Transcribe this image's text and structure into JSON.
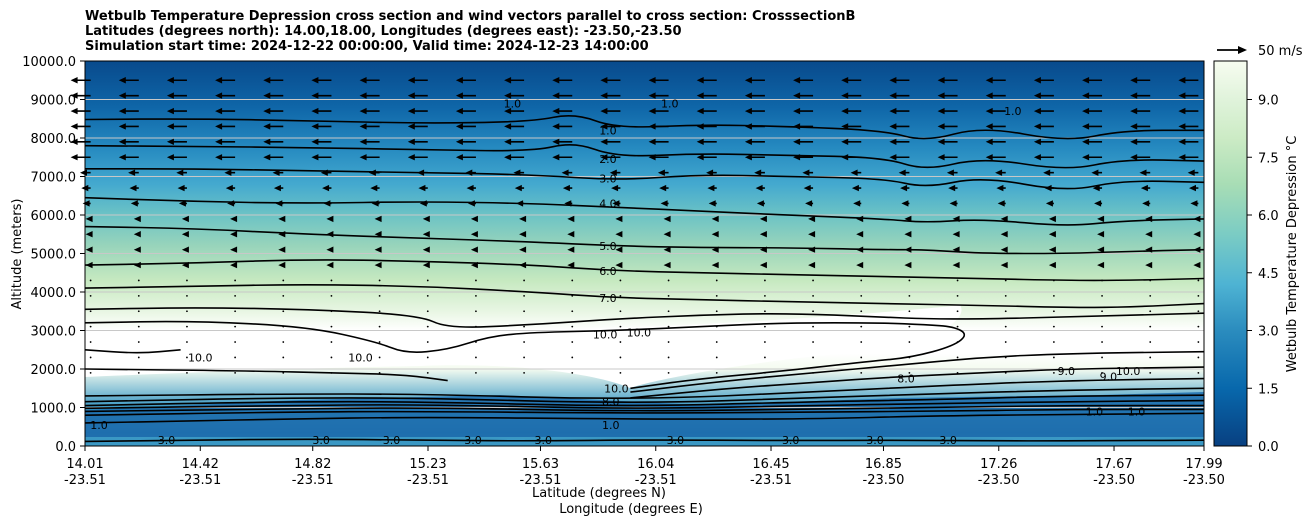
{
  "chart_data": {
    "type": "filled-contour cross section with line contours and wind vectors",
    "title_lines": [
      "Wetbulb Temperature Depression cross section and wind vectors parallel to cross section: CrosssectionB",
      "Latitudes (degrees north): 14.00,18.00, Longitudes (degrees east): -23.50,-23.50",
      "Simulation start time: 2024-12-22 00:00:00, Valid time: 2024-12-23 14:00:00"
    ],
    "ylabel": "Altitude (meters)",
    "xlabel_lat": "Latitude (degrees N)",
    "xlabel_lon": "Longitude (degrees E)",
    "ylim": [
      0,
      10000
    ],
    "yticks": [
      "0.0",
      "1000.0",
      "2000.0",
      "3000.0",
      "4000.0",
      "5000.0",
      "6000.0",
      "7000.0",
      "8000.0",
      "9000.0",
      "10000.0"
    ],
    "xticks_lat": [
      "14.01",
      "14.42",
      "14.82",
      "15.23",
      "15.63",
      "16.04",
      "16.45",
      "16.85",
      "17.26",
      "17.67",
      "17.99"
    ],
    "xticks_lon": [
      "-23.51",
      "-23.51",
      "-23.51",
      "-23.51",
      "-23.51",
      "-23.51",
      "-23.51",
      "-23.50",
      "-23.50",
      "-23.50",
      "-23.50"
    ],
    "xlim_lat": [
      14.01,
      17.99
    ],
    "horizontal_grid": true,
    "colorbar": {
      "label": "Wetbulb Temperature Depression °C",
      "range": [
        0,
        10
      ],
      "ticks": [
        "0.0",
        "1.5",
        "3.0",
        "4.5",
        "6.0",
        "7.5",
        "9.0"
      ],
      "colormap": "GnBu_r"
    },
    "wind_key_label": "50 m/s",
    "contour_labels": [
      {
        "text": "1.0",
        "lat": 15.87,
        "alt": 8200
      },
      {
        "text": "2.0",
        "lat": 15.87,
        "alt": 7450
      },
      {
        "text": "3.0",
        "lat": 15.87,
        "alt": 6950
      },
      {
        "text": "4.0",
        "lat": 15.87,
        "alt": 6300
      },
      {
        "text": "5.0",
        "lat": 15.87,
        "alt": 5200
      },
      {
        "text": "6.0",
        "lat": 15.87,
        "alt": 4550
      },
      {
        "text": "7.0",
        "lat": 15.87,
        "alt": 3850
      },
      {
        "text": "10.0",
        "lat": 15.86,
        "alt": 2900
      },
      {
        "text": "10.0",
        "lat": 15.98,
        "alt": 2950
      },
      {
        "text": "10.0",
        "lat": 15.9,
        "alt": 1500
      },
      {
        "text": "8.0",
        "lat": 15.88,
        "alt": 1150
      },
      {
        "text": "1.0",
        "lat": 15.88,
        "alt": 550
      },
      {
        "text": "1.0",
        "lat": 14.06,
        "alt": 550
      },
      {
        "text": "3.0",
        "lat": 14.3,
        "alt": 150
      },
      {
        "text": "3.0",
        "lat": 14.85,
        "alt": 150
      },
      {
        "text": "3.0",
        "lat": 15.1,
        "alt": 150
      },
      {
        "text": "3.0",
        "lat": 15.39,
        "alt": 150
      },
      {
        "text": "3.0",
        "lat": 15.64,
        "alt": 150
      },
      {
        "text": "3.0",
        "lat": 16.11,
        "alt": 150
      },
      {
        "text": "3.0",
        "lat": 16.52,
        "alt": 150
      },
      {
        "text": "3.0",
        "lat": 16.82,
        "alt": 150
      },
      {
        "text": "3.0",
        "lat": 17.08,
        "alt": 150
      },
      {
        "text": "10.0",
        "lat": 14.42,
        "alt": 2300
      },
      {
        "text": "10.0",
        "lat": 14.99,
        "alt": 2300
      },
      {
        "text": "8.0",
        "lat": 16.93,
        "alt": 1750
      },
      {
        "text": "9.0",
        "lat": 17.5,
        "alt": 1950
      },
      {
        "text": "9.0",
        "lat": 17.65,
        "alt": 1800
      },
      {
        "text": "10.0",
        "lat": 17.72,
        "alt": 1950
      },
      {
        "text": "1.0",
        "lat": 15.53,
        "alt": 8900
      },
      {
        "text": "1.0",
        "lat": 16.09,
        "alt": 8900
      },
      {
        "text": "1.0",
        "lat": 17.31,
        "alt": 8700
      },
      {
        "text": "1.0",
        "lat": 17.6,
        "alt": 900
      },
      {
        "text": "1.0",
        "lat": 17.75,
        "alt": 900
      }
    ],
    "contours": [
      {
        "level": 1.0,
        "points": [
          [
            14.01,
            8480
          ],
          [
            14.4,
            8500
          ],
          [
            14.8,
            8450
          ],
          [
            15.2,
            8380
          ],
          [
            15.6,
            8420
          ],
          [
            15.75,
            8650
          ],
          [
            15.9,
            8250
          ],
          [
            16.2,
            8350
          ],
          [
            16.5,
            8300
          ],
          [
            16.85,
            8200
          ],
          [
            17.0,
            7900
          ],
          [
            17.2,
            8300
          ],
          [
            17.5,
            7900
          ],
          [
            17.7,
            8200
          ],
          [
            17.99,
            8200
          ]
        ]
      },
      {
        "level": 2.0,
        "points": [
          [
            14.01,
            7800
          ],
          [
            14.4,
            7780
          ],
          [
            14.8,
            7750
          ],
          [
            15.2,
            7700
          ],
          [
            15.6,
            7650
          ],
          [
            15.75,
            7900
          ],
          [
            15.9,
            7500
          ],
          [
            16.2,
            7600
          ],
          [
            16.5,
            7550
          ],
          [
            16.85,
            7500
          ],
          [
            17.0,
            7150
          ],
          [
            17.2,
            7500
          ],
          [
            17.5,
            7150
          ],
          [
            17.7,
            7450
          ],
          [
            17.99,
            7400
          ]
        ]
      },
      {
        "level": 3.0,
        "points": [
          [
            14.01,
            7200
          ],
          [
            14.4,
            7200
          ],
          [
            14.8,
            7150
          ],
          [
            15.2,
            7100
          ],
          [
            15.6,
            7050
          ],
          [
            15.9,
            6900
          ],
          [
            16.2,
            7050
          ],
          [
            16.5,
            7000
          ],
          [
            16.85,
            6950
          ],
          [
            17.0,
            6700
          ],
          [
            17.2,
            7000
          ],
          [
            17.5,
            6600
          ],
          [
            17.7,
            6900
          ],
          [
            17.99,
            6850
          ]
        ]
      },
      {
        "level": 4.0,
        "points": [
          [
            14.01,
            6450
          ],
          [
            14.4,
            6350
          ],
          [
            14.8,
            6300
          ],
          [
            15.2,
            6350
          ],
          [
            15.6,
            6300
          ],
          [
            15.9,
            6200
          ],
          [
            16.2,
            6100
          ],
          [
            16.5,
            6000
          ],
          [
            16.85,
            5900
          ],
          [
            17.0,
            5800
          ],
          [
            17.2,
            5900
          ],
          [
            17.5,
            5700
          ],
          [
            17.7,
            5850
          ],
          [
            17.99,
            5900
          ]
        ]
      },
      {
        "level": 5.0,
        "points": [
          [
            14.01,
            5700
          ],
          [
            14.4,
            5650
          ],
          [
            14.8,
            5500
          ],
          [
            15.2,
            5400
          ],
          [
            15.6,
            5300
          ],
          [
            15.9,
            5200
          ],
          [
            16.2,
            5150
          ],
          [
            16.5,
            5150
          ],
          [
            16.85,
            5100
          ],
          [
            17.0,
            5100
          ],
          [
            17.2,
            5000
          ],
          [
            17.5,
            5000
          ],
          [
            17.7,
            5050
          ],
          [
            17.99,
            5100
          ]
        ]
      },
      {
        "level": 6.0,
        "points": [
          [
            14.01,
            4700
          ],
          [
            14.4,
            4750
          ],
          [
            14.8,
            4850
          ],
          [
            15.2,
            4800
          ],
          [
            15.6,
            4700
          ],
          [
            15.9,
            4550
          ],
          [
            16.2,
            4500
          ],
          [
            16.5,
            4450
          ],
          [
            16.85,
            4400
          ],
          [
            17.2,
            4350
          ],
          [
            17.5,
            4300
          ],
          [
            17.7,
            4300
          ],
          [
            17.99,
            4350
          ]
        ]
      },
      {
        "level": 7.0,
        "points": [
          [
            14.01,
            4100
          ],
          [
            14.4,
            4150
          ],
          [
            14.8,
            4200
          ],
          [
            15.2,
            4150
          ],
          [
            15.6,
            4000
          ],
          [
            15.9,
            3850
          ],
          [
            16.2,
            3800
          ],
          [
            16.5,
            3750
          ],
          [
            16.85,
            3700
          ],
          [
            17.2,
            3650
          ],
          [
            17.5,
            3600
          ],
          [
            17.7,
            3600
          ],
          [
            17.99,
            3700
          ]
        ]
      },
      {
        "level": 8.0,
        "points": [
          [
            14.01,
            3550
          ],
          [
            14.4,
            3600
          ],
          [
            14.8,
            3550
          ],
          [
            15.2,
            3400
          ],
          [
            15.3,
            3050
          ],
          [
            15.6,
            3150
          ],
          [
            15.9,
            3300
          ],
          [
            16.2,
            3400
          ],
          [
            16.5,
            3450
          ],
          [
            16.85,
            3350
          ],
          [
            17.0,
            3300
          ],
          [
            17.2,
            3300
          ],
          [
            17.5,
            3350
          ],
          [
            17.99,
            3450
          ]
        ]
      },
      {
        "level": 10.0,
        "points": [
          [
            14.01,
            3200
          ],
          [
            14.4,
            3250
          ],
          [
            14.8,
            3100
          ],
          [
            15.05,
            2700
          ],
          [
            15.15,
            2400
          ],
          [
            15.3,
            2500
          ],
          [
            15.45,
            2850
          ],
          [
            15.6,
            2950
          ],
          [
            15.9,
            3000
          ],
          [
            16.2,
            3100
          ],
          [
            16.5,
            3200
          ],
          [
            16.85,
            3200
          ],
          [
            17.0,
            3150
          ],
          [
            17.1,
            3100
          ],
          [
            17.15,
            2900
          ],
          [
            17.1,
            2600
          ],
          [
            16.95,
            2300
          ],
          [
            16.8,
            2200
          ],
          [
            16.5,
            1950
          ],
          [
            16.2,
            1750
          ],
          [
            15.95,
            1500
          ]
        ]
      },
      {
        "level": 10.0,
        "points": [
          [
            14.01,
            2500
          ],
          [
            14.2,
            2400
          ],
          [
            14.35,
            2500
          ]
        ]
      },
      {
        "level": 10.0,
        "points": [
          [
            14.01,
            2000
          ],
          [
            14.6,
            1950
          ],
          [
            14.9,
            1900
          ],
          [
            15.15,
            1850
          ],
          [
            15.3,
            1700
          ]
        ]
      },
      {
        "level": 9.0,
        "points": [
          [
            15.95,
            1400
          ],
          [
            16.3,
            1700
          ],
          [
            16.6,
            1900
          ],
          [
            16.9,
            2100
          ],
          [
            17.2,
            2300
          ],
          [
            17.5,
            2400
          ],
          [
            17.99,
            2450
          ]
        ]
      },
      {
        "level": 8.0,
        "points": [
          [
            15.95,
            1250
          ],
          [
            16.3,
            1500
          ],
          [
            16.6,
            1650
          ],
          [
            16.9,
            1800
          ],
          [
            17.2,
            1900
          ],
          [
            17.5,
            2000
          ],
          [
            17.99,
            2050
          ]
        ]
      },
      {
        "level": 7.0,
        "points": [
          [
            14.01,
            1300
          ],
          [
            14.7,
            1350
          ],
          [
            15.2,
            1350
          ],
          [
            15.95,
            1200
          ],
          [
            16.6,
            1400
          ],
          [
            17.0,
            1550
          ],
          [
            17.5,
            1700
          ],
          [
            17.99,
            1750
          ]
        ]
      },
      {
        "level": 6.0,
        "points": [
          [
            14.01,
            1150
          ],
          [
            14.7,
            1250
          ],
          [
            15.2,
            1250
          ],
          [
            15.95,
            1100
          ],
          [
            16.6,
            1250
          ],
          [
            17.0,
            1350
          ],
          [
            17.5,
            1450
          ],
          [
            17.99,
            1500
          ]
        ]
      },
      {
        "level": 5.0,
        "points": [
          [
            14.01,
            1050
          ],
          [
            14.7,
            1150
          ],
          [
            15.2,
            1150
          ],
          [
            15.95,
            1020
          ],
          [
            16.6,
            1150
          ],
          [
            17.0,
            1200
          ],
          [
            17.5,
            1300
          ],
          [
            17.99,
            1320
          ]
        ]
      },
      {
        "level": 4.0,
        "points": [
          [
            14.01,
            980
          ],
          [
            14.7,
            1050
          ],
          [
            15.2,
            1080
          ],
          [
            15.95,
            960
          ],
          [
            16.6,
            1050
          ],
          [
            17.0,
            1100
          ],
          [
            17.5,
            1150
          ],
          [
            17.99,
            1180
          ]
        ]
      },
      {
        "level": 3.0,
        "points": [
          [
            14.01,
            900
          ],
          [
            14.7,
            960
          ],
          [
            15.2,
            1000
          ],
          [
            15.95,
            900
          ],
          [
            16.6,
            960
          ],
          [
            17.0,
            1000
          ],
          [
            17.5,
            1050
          ],
          [
            17.99,
            1050
          ]
        ]
      },
      {
        "level": 2.0,
        "points": [
          [
            14.01,
            800
          ],
          [
            14.7,
            880
          ],
          [
            15.2,
            900
          ],
          [
            15.95,
            850
          ],
          [
            16.6,
            880
          ],
          [
            17.0,
            900
          ],
          [
            17.5,
            950
          ],
          [
            17.99,
            950
          ]
        ]
      },
      {
        "level": 1.0,
        "points": [
          [
            14.01,
            600
          ],
          [
            14.4,
            650
          ],
          [
            14.7,
            700
          ],
          [
            15.2,
            750
          ],
          [
            15.95,
            700
          ],
          [
            16.6,
            700
          ],
          [
            17.0,
            780
          ],
          [
            17.5,
            820
          ],
          [
            17.99,
            850
          ]
        ]
      },
      {
        "level": 3.0,
        "points": [
          [
            14.01,
            120
          ],
          [
            14.4,
            150
          ],
          [
            14.8,
            180
          ],
          [
            15.2,
            150
          ],
          [
            15.6,
            130
          ],
          [
            16.0,
            160
          ],
          [
            16.5,
            140
          ],
          [
            16.9,
            150
          ],
          [
            17.3,
            130
          ],
          [
            17.7,
            140
          ],
          [
            17.99,
            150
          ]
        ]
      }
    ]
  }
}
